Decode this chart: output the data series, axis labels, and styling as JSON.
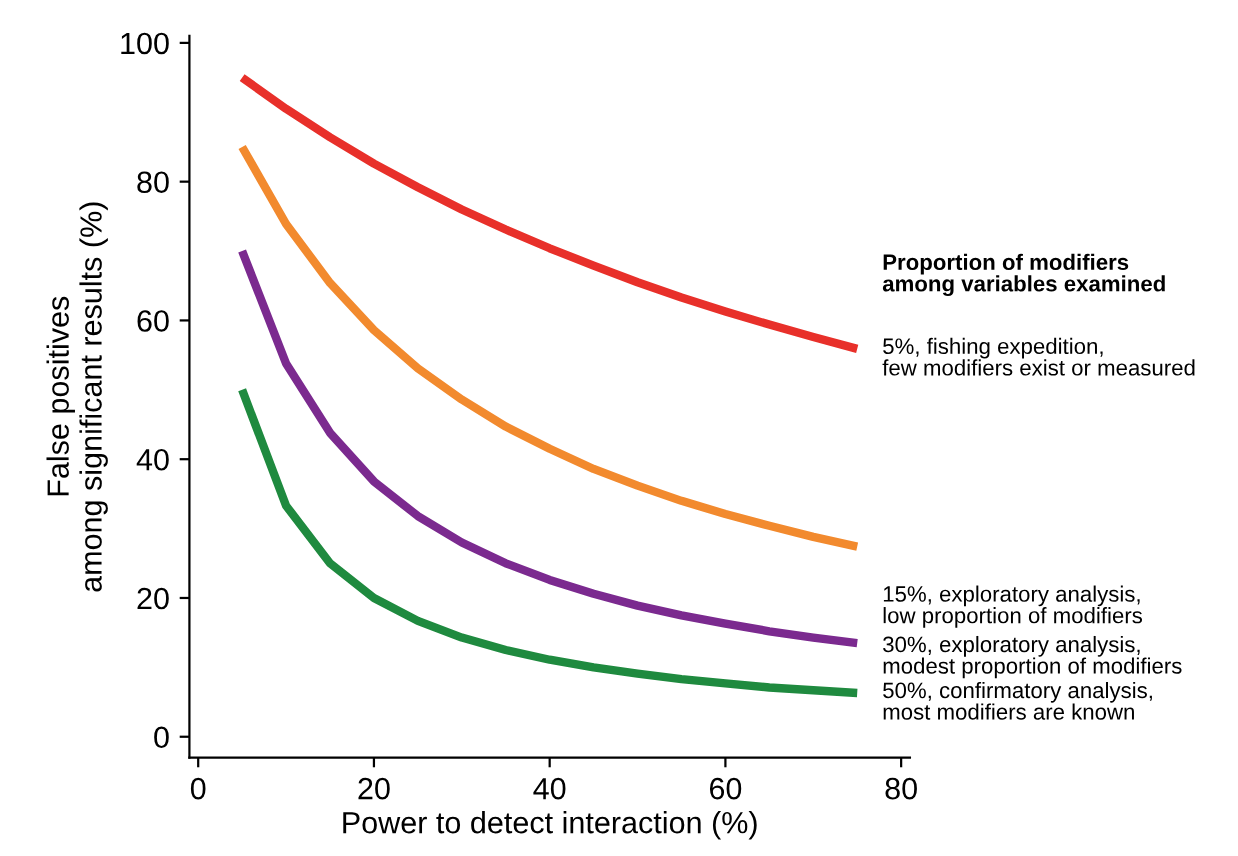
{
  "chart_data": {
    "type": "line",
    "xlabel": "Power to detect interaction (%)",
    "ylabel": "False positives\namong significant results (%)",
    "legend_title": "Proportion of modifiers\namong variables examined",
    "x": [
      5,
      10,
      15,
      20,
      25,
      30,
      35,
      40,
      45,
      50,
      55,
      60,
      65,
      70,
      75
    ],
    "series": [
      {
        "name": "5%, fishing expedition,\nfew modifiers exist or measured",
        "color": "#e8302a",
        "values": [
          95,
          90.5,
          86.4,
          82.6,
          79.2,
          76,
          73.1,
          70.4,
          67.9,
          65.5,
          63.3,
          61.3,
          59.4,
          57.6,
          55.9
        ]
      },
      {
        "name": "15%, exploratory analysis,\nlow proportion of modifiers",
        "color": "#f28a2e",
        "values": [
          85,
          73.9,
          65.4,
          58.6,
          53.1,
          48.6,
          44.7,
          41.5,
          38.6,
          36.2,
          34,
          32.1,
          30.4,
          28.8,
          27.4
        ]
      },
      {
        "name": "30%, exploratory analysis,\nmodest proportion of modifiers",
        "color": "#7b2a8f",
        "values": [
          70,
          53.8,
          43.8,
          36.8,
          31.8,
          28,
          25,
          22.6,
          20.6,
          18.9,
          17.5,
          16.3,
          15.2,
          14.3,
          13.5
        ]
      },
      {
        "name": "50%, confirmatory analysis,\nmost modifiers are known",
        "color": "#1f8a3f",
        "values": [
          50,
          33.3,
          25,
          20,
          16.7,
          14.3,
          12.5,
          11.1,
          10,
          9.1,
          8.3,
          7.7,
          7.1,
          6.7,
          6.3
        ]
      }
    ],
    "xlim": [
      -1,
      81
    ],
    "xticks": [
      0,
      20,
      40,
      60,
      80
    ],
    "ylim": [
      -3,
      101
    ],
    "yticks": [
      0,
      20,
      40,
      60,
      80,
      100
    ],
    "grid": false,
    "legend": false,
    "marker": "none",
    "line_style": "solid"
  }
}
